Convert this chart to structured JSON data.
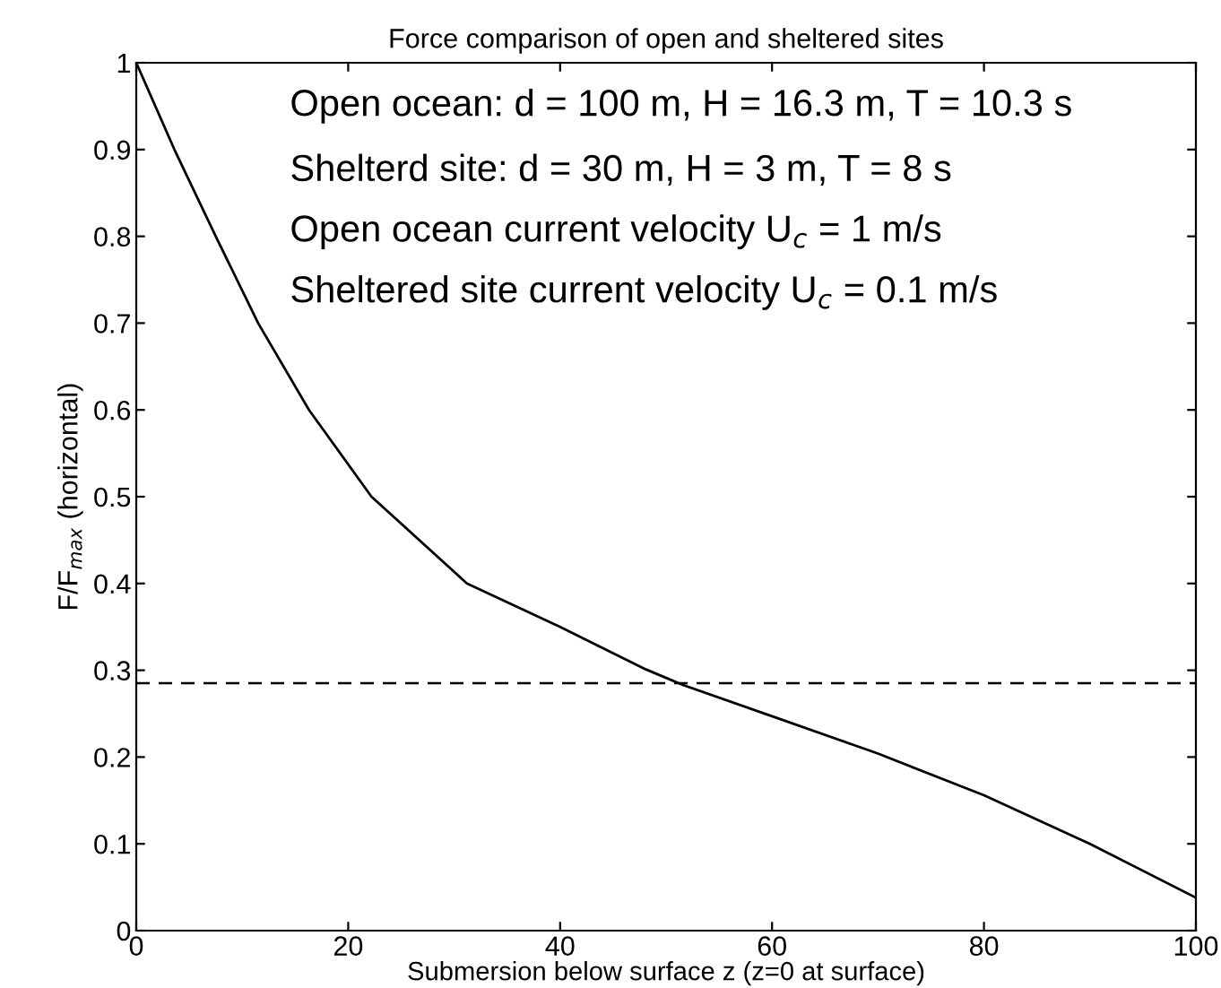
{
  "chart_data": {
    "type": "line",
    "title": "Force comparison of open and sheltered sites",
    "xlabel": "Submersion below surface z (z=0 at surface)",
    "ylabel": "F/F$_{max}$ (horizontal)",
    "annotations": [
      "Open ocean: d = 100 m, H = 16.3 m, T = 10.3 s",
      "Shelterd site: d = 30 m, H = 3 m, T = 8 s",
      "Open ocean current velocity U$_{c}$ = 1 m/s",
      "Sheltered site current velocity U$_{c}$ = 0.1 m/s"
    ],
    "x": [
      0,
      3.6,
      7.5,
      11.5,
      16.3,
      22.2,
      31.2,
      40,
      48.1,
      51.6,
      60,
      70,
      80,
      90,
      100
    ],
    "series": [
      {
        "color": "#000000",
        "values": [
          1.0,
          0.9,
          0.8,
          0.7,
          0.6,
          0.5,
          0.4,
          0.35,
          0.301,
          0.283,
          0.247,
          0.204,
          0.156,
          0.1,
          0.038
        ]
      }
    ],
    "ref_lines": [
      {
        "axis": "y",
        "value": 0.285,
        "color": "#000000",
        "line_style": "dashed"
      }
    ],
    "xlim": [
      0,
      100
    ],
    "ylim": [
      0,
      1
    ],
    "xticks": [
      0,
      20,
      40,
      60,
      80,
      100
    ],
    "yticks": [
      0,
      0.1,
      0.2,
      0.3,
      0.4,
      0.5,
      0.6,
      0.7,
      0.8,
      0.9,
      1
    ],
    "grid": false,
    "legend": false,
    "marker": "none",
    "line_style": "solid"
  }
}
